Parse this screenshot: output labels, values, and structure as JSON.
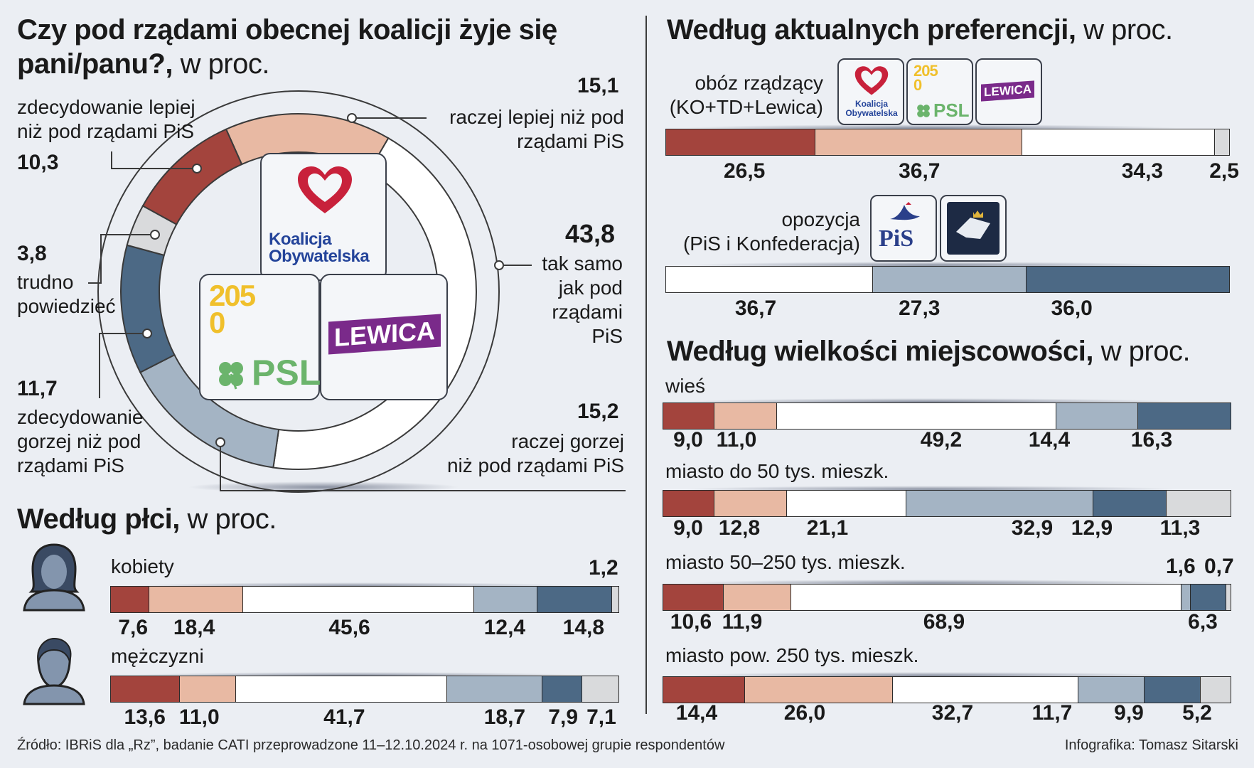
{
  "colors": {
    "zdecydowanie_lepiej": "#a3443d",
    "raczej_lepiej": "#e8b9a3",
    "tak_samo": "#ffffff",
    "raczej_gorzej": "#a4b4c4",
    "zdecydowanie_gorzej": "#4c6985",
    "trudno": "#d9dadc",
    "background": "#ebeef3"
  },
  "main": {
    "title_bold_1": "Czy pod rządami obecnej koalicji żyje się",
    "title_bold_2": "pani/panu?,",
    "title_unit": "w proc.",
    "logos": {
      "ko_line1": "Koalicja",
      "ko_line2": "Obywatelska",
      "td_number": "2050",
      "psl": "PSL",
      "lewica": "LEWICA"
    }
  },
  "chart_data": [
    {
      "type": "pie",
      "title": "Czy pod rządami obecnej koalicji żyje się pani/panu?, w proc.",
      "slices": [
        {
          "label": "raczej lepiej niż pod rządami PiS",
          "value": 15.1,
          "value_text": "15,1"
        },
        {
          "label": "tak samo jak pod rządami PiS",
          "value": 43.8,
          "value_text": "43,8"
        },
        {
          "label": "raczej gorzej niż pod rządami PiS",
          "value": 15.2,
          "value_text": "15,2"
        },
        {
          "label": "zdecydowanie gorzej niż pod rządami PiS",
          "value": 11.7,
          "value_text": "11,7"
        },
        {
          "label": "trudno powiedzieć",
          "value": 3.8,
          "value_text": "3,8"
        },
        {
          "label": "zdecydowanie lepiej niż pod rządami PiS",
          "value": 10.3,
          "value_text": "10,3"
        }
      ],
      "labels": {
        "lepiej_raczej_1": "raczej lepiej niż pod",
        "lepiej_raczej_2": "rządami PiS",
        "tak_samo_1": "tak samo",
        "tak_samo_2": "jak pod",
        "tak_samo_3": "rządami",
        "tak_samo_4": "PiS",
        "gorzej_raczej_1": "raczej gorzej",
        "gorzej_raczej_2": "niż pod rządami PiS",
        "gorzej_zdec_1": "zdecydowanie",
        "gorzej_zdec_2": "gorzej niż pod",
        "gorzej_zdec_3": "rządami PiS",
        "trudno_1": "trudno",
        "trudno_2": "powiedzieć",
        "lepiej_zdec_1": "zdecydowanie lepiej",
        "lepiej_zdec_2": "niż pod rządami PiS"
      }
    },
    {
      "type": "bar",
      "title": "Według płci, w proc.",
      "title_bold": "Według płci,",
      "title_unit": "w proc.",
      "stacked": true,
      "categories": [
        "kobiety",
        "mężczyzni"
      ],
      "series": [
        {
          "name": "zdecydowanie lepiej",
          "values": [
            7.6,
            13.6
          ],
          "labels": [
            "7,6",
            "13,6"
          ]
        },
        {
          "name": "raczej lepiej",
          "values": [
            18.4,
            11.0
          ],
          "labels": [
            "18,4",
            "11,0"
          ]
        },
        {
          "name": "tak samo",
          "values": [
            45.6,
            41.7
          ],
          "labels": [
            "45,6",
            "41,7"
          ]
        },
        {
          "name": "raczej gorzej",
          "values": [
            12.4,
            18.7
          ],
          "labels": [
            "12,4",
            "18,7"
          ]
        },
        {
          "name": "zdecydowanie gorzej",
          "values": [
            14.8,
            7.9
          ],
          "labels": [
            "14,8",
            "7,9"
          ]
        },
        {
          "name": "trudno powiedzieć",
          "values": [
            1.2,
            7.1
          ],
          "labels": [
            "1,2",
            "7,1"
          ]
        }
      ]
    },
    {
      "type": "bar",
      "title": "Według aktualnych preferencji, w proc.",
      "title_bold": "Według aktualnych preferencji,",
      "title_unit": "w proc.",
      "stacked": true,
      "categories": [
        "obóz rządzący (KO+TD+Lewica)",
        "opozycja (PiS i Konfederacja)"
      ],
      "category_lines": [
        [
          "obóz rządzący",
          "(KO+TD+Lewica)"
        ],
        [
          "opozycja",
          "(PiS i Konfederacja)"
        ]
      ],
      "rows": [
        {
          "segments": [
            {
              "series": "zdecydowanie lepiej",
              "value": 26.5,
              "label": "26,5"
            },
            {
              "series": "raczej lepiej",
              "value": 36.7,
              "label": "36,7"
            },
            {
              "series": "tak samo",
              "value": 34.3,
              "label": "34,3"
            },
            {
              "series": "trudno powiedzieć",
              "value": 2.5,
              "label": "2,5"
            }
          ]
        },
        {
          "segments": [
            {
              "series": "tak samo",
              "value": 36.7,
              "label": "36,7"
            },
            {
              "series": "raczej gorzej",
              "value": 27.3,
              "label": "27,3"
            },
            {
              "series": "zdecydowanie gorzej",
              "value": 36.0,
              "label": "36,0"
            }
          ]
        }
      ],
      "logos": {
        "pis": "PiS",
        "ko_line1": "Koalicja",
        "ko_line2": "Obywatelska",
        "td_number": "2050",
        "psl": "PSL",
        "lewica": "LEWICA"
      }
    },
    {
      "type": "bar",
      "title": "Według wielkości miejscowości, w proc.",
      "title_bold": "Według wielkości miejscowości,",
      "title_unit": "w proc.",
      "stacked": true,
      "categories": [
        "wieś",
        "miasto do 50 tys. mieszk.",
        "miasto 50–250 tys. mieszk.",
        "miasto pow. 250 tys. mieszk."
      ],
      "series": [
        {
          "name": "zdecydowanie lepiej",
          "values": [
            9.0,
            9.0,
            10.6,
            14.4
          ],
          "labels": [
            "9,0",
            "9,0",
            "10,6",
            "14,4"
          ]
        },
        {
          "name": "raczej lepiej",
          "values": [
            11.0,
            12.8,
            11.9,
            26.0
          ],
          "labels": [
            "11,0",
            "12,8",
            "11,9",
            "26,0"
          ]
        },
        {
          "name": "tak samo",
          "values": [
            49.2,
            21.1,
            68.9,
            32.7
          ],
          "labels": [
            "49,2",
            "21,1",
            "68,9",
            "32,7"
          ]
        },
        {
          "name": "raczej gorzej",
          "values": [
            14.4,
            32.9,
            1.6,
            11.7
          ],
          "labels": [
            "14,4",
            "32,9",
            "1,6",
            "11,7"
          ]
        },
        {
          "name": "zdecydowanie gorzej",
          "values": [
            16.3,
            12.9,
            6.3,
            9.9
          ],
          "labels": [
            "16,3",
            "12,9",
            "6,3",
            "9,9"
          ]
        },
        {
          "name": "trudno powiedzieć",
          "values": [
            0,
            11.3,
            0.7,
            5.2
          ],
          "labels": [
            "",
            "11,3",
            "0,7",
            "5,2"
          ]
        }
      ]
    }
  ],
  "footer": {
    "source": "Źródło: IBRiS dla „Rz”, badanie CATI przeprowadzone 11–12.10.2024 r. na 1071-osobowej grupie respondentów",
    "credit": "Infografika: Tomasz Sitarski"
  }
}
